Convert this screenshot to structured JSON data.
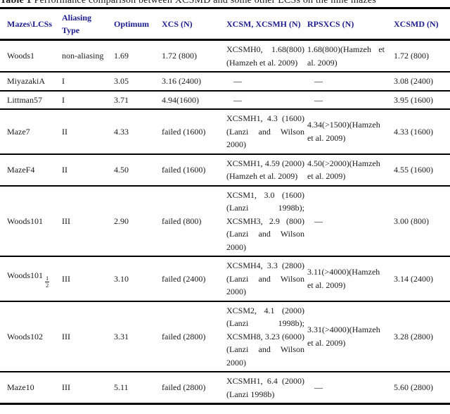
{
  "caption": {
    "prefix": "Table 1",
    "text": " Performance comparison between XCSMD and some other LCSs on the nine mazes"
  },
  "colors": {
    "header_text": "#1c1c8f",
    "body_text": "#1a1a1a",
    "rule": "#000000"
  },
  "table": {
    "columns": [
      {
        "key": "maze",
        "label": "Mazes\\LCSs"
      },
      {
        "key": "aliasing",
        "label": "Aliasing Type"
      },
      {
        "key": "optimum",
        "label": "Optimum"
      },
      {
        "key": "xcs",
        "label": "XCS (N)"
      },
      {
        "key": "xcsm",
        "label": "XCSM, XCSMH (N)"
      },
      {
        "key": "rpsxcs",
        "label": "RPSXCS (N)"
      },
      {
        "key": "xcsmd",
        "label": "XCSMD (N)"
      }
    ],
    "rows": [
      {
        "maze": "Woods1",
        "aliasing": "non-aliasing",
        "optimum": "1.69",
        "xcs": "1.72 (800)",
        "xcsm": "XCSMH0, 1.68(800)(Hamzeh et al. 2009)",
        "rpsxcs": "1.68(800)(Hamzeh et al. 2009)",
        "xcsmd": "1.72 (800)"
      },
      {
        "maze": "MiyazakiA",
        "aliasing": "I",
        "optimum": "3.05",
        "xcs": "3.16 (2400)",
        "xcsm": "—",
        "rpsxcs": "—",
        "xcsmd": "3.08 (2400)"
      },
      {
        "maze": "Littman57",
        "aliasing": "I",
        "optimum": "3.71",
        "xcs": "4.94(1600)",
        "xcsm": "—",
        "rpsxcs": "—",
        "xcsmd": "3.95 (1600)"
      },
      {
        "maze": "Maze7",
        "aliasing": "II",
        "optimum": "4.33",
        "xcs": "failed (1600)",
        "xcsm": "XCSMH1, 4.3 (1600)(Lanzi and Wilson 2000)",
        "rpsxcs": "4.34(>1500)(Hamzeh et al. 2009)",
        "xcsmd": "4.33 (1600)"
      },
      {
        "maze": "MazeF4",
        "aliasing": "II",
        "optimum": "4.50",
        "xcs": "failed (1600)",
        "xcsm": "XCSMH1, 4.59 (2000)(Hamzeh et al. 2009)",
        "rpsxcs": "4.50(>2000)(Hamzeh et al. 2009)",
        "xcsmd": "4.55 (1600)"
      },
      {
        "maze": "Woods101",
        "aliasing": "III",
        "optimum": "2.90",
        "xcs": "failed (800)",
        "xcsm": "XCSM1, 3.0 (1600)(Lanzi 1998b); XCSMH3, 2.9 (800)(Lanzi and Wilson 2000)",
        "rpsxcs": "—",
        "xcsmd": "3.00 (800)"
      },
      {
        "maze": "Woods101",
        "maze_frac": {
          "num": "1",
          "den": "2"
        },
        "aliasing": "III",
        "optimum": "3.10",
        "xcs": "failed (2400)",
        "xcsm": "XCSMH4, 3.3 (2800)(Lanzi and Wilson 2000)",
        "rpsxcs": "3.11(>4000)(Hamzeh et al. 2009)",
        "xcsmd": "3.14 (2400)"
      },
      {
        "maze": "Woods102",
        "aliasing": "III",
        "optimum": "3.31",
        "xcs": "failed (2800)",
        "xcsm": "XCSM2, 4.1 (2000)(Lanzi 1998b); XCSMH8, 3.23 (6000)(Lanzi and Wilson 2000)",
        "rpsxcs": "3.31(>4000)(Hamzeh et al. 2009)",
        "xcsmd": "3.28 (2800)"
      },
      {
        "maze": "Maze10",
        "aliasing": "III",
        "optimum": "5.11",
        "xcs": "failed (2800)",
        "xcsm": "XCSMH1, 6.4 (2000)(Lanzi 1998b)",
        "rpsxcs": "—",
        "xcsmd": "5.60 (2800)"
      }
    ]
  }
}
